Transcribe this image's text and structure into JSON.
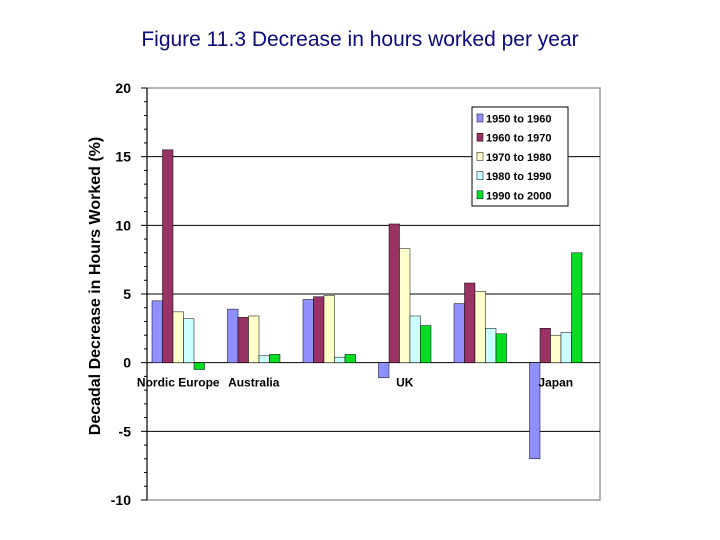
{
  "title": "Figure 11.3 Decrease in hours worked per year",
  "chart_data": {
    "type": "bar",
    "title": "Figure 11.3 Decrease in hours worked per year",
    "xlabel": "",
    "ylabel": "Decadal Decrease in Hours Worked (%)",
    "ylim": [
      -10,
      20
    ],
    "yticks": [
      20,
      15,
      10,
      5,
      0,
      -5,
      -10
    ],
    "grid": true,
    "legend_position": "top-right",
    "categories": [
      "Nordic Europe",
      "Australia",
      "",
      "UK",
      "",
      "Japan"
    ],
    "series": [
      {
        "name": "1950 to 1960",
        "color": "#8f8fff",
        "values": [
          4.5,
          3.9,
          4.6,
          -1.1,
          4.3,
          -7.0
        ]
      },
      {
        "name": "1960 to 1970",
        "color": "#993366",
        "values": [
          15.5,
          3.3,
          4.8,
          10.1,
          5.8,
          2.5
        ]
      },
      {
        "name": "1970 to 1980",
        "color": "#ffffcc",
        "values": [
          3.7,
          3.4,
          4.9,
          8.3,
          5.2,
          2.0
        ]
      },
      {
        "name": "1980 to 1990",
        "color": "#ccffff",
        "values": [
          3.2,
          0.5,
          0.4,
          3.4,
          2.5,
          2.2
        ]
      },
      {
        "name": "1990 to 2000",
        "color": "#00dd22",
        "values": [
          -0.5,
          0.6,
          0.6,
          2.7,
          2.1,
          8.0
        ]
      }
    ]
  }
}
